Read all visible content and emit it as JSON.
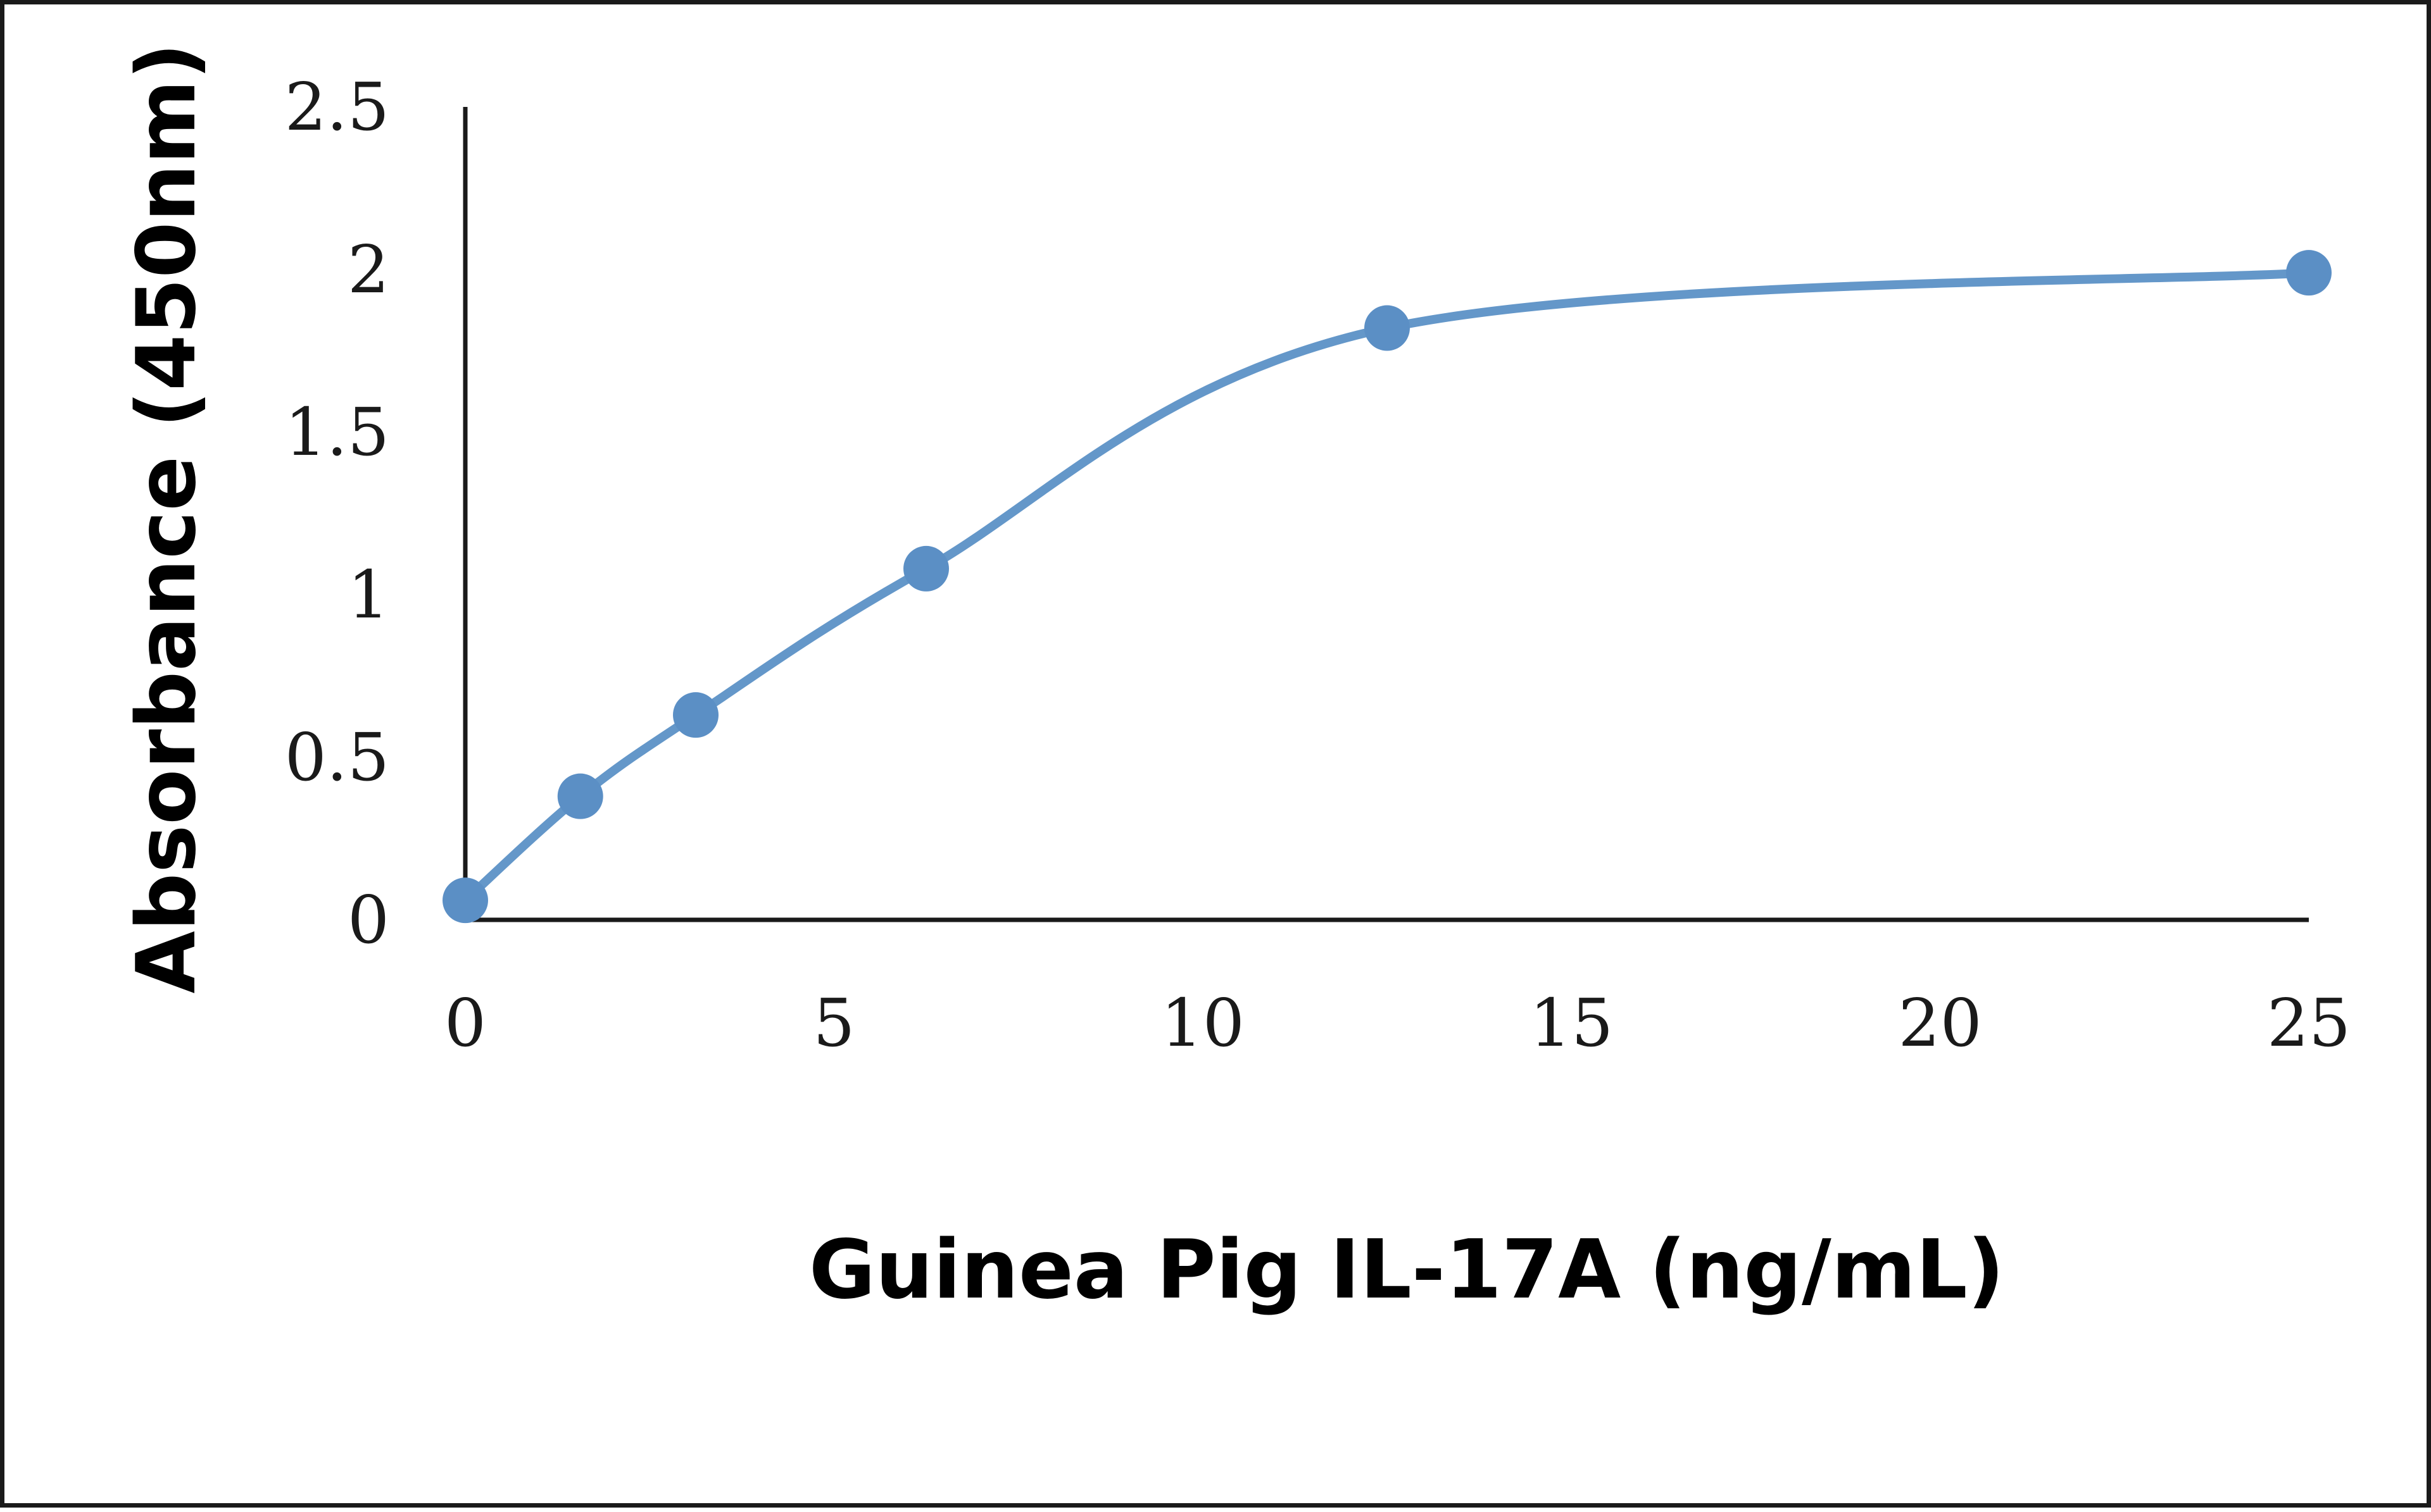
{
  "chart_data": {
    "type": "scatter",
    "title": "",
    "xlabel": "Guinea Pig IL-17A (ng/mL)",
    "ylabel": "Absorbance (450nm)",
    "xlim": [
      0,
      25
    ],
    "ylim": [
      0,
      2.5
    ],
    "x_ticks": [
      "0",
      "5",
      "10",
      "15",
      "20",
      "25"
    ],
    "y_ticks": [
      "0",
      "0.5",
      "1",
      "1.5",
      "2",
      "2.5"
    ],
    "grid": false,
    "legend": "none",
    "smooth_line": true,
    "series": [
      {
        "x": [
          0,
          1.56,
          3.125,
          6.25,
          12.5,
          25
        ],
        "y": [
          0.06,
          0.38,
          0.63,
          1.08,
          1.82,
          1.99
        ]
      }
    ],
    "colors": {
      "series": "#5b8fc5",
      "line": "#6497c9",
      "axis": "#1a1a1a"
    }
  }
}
